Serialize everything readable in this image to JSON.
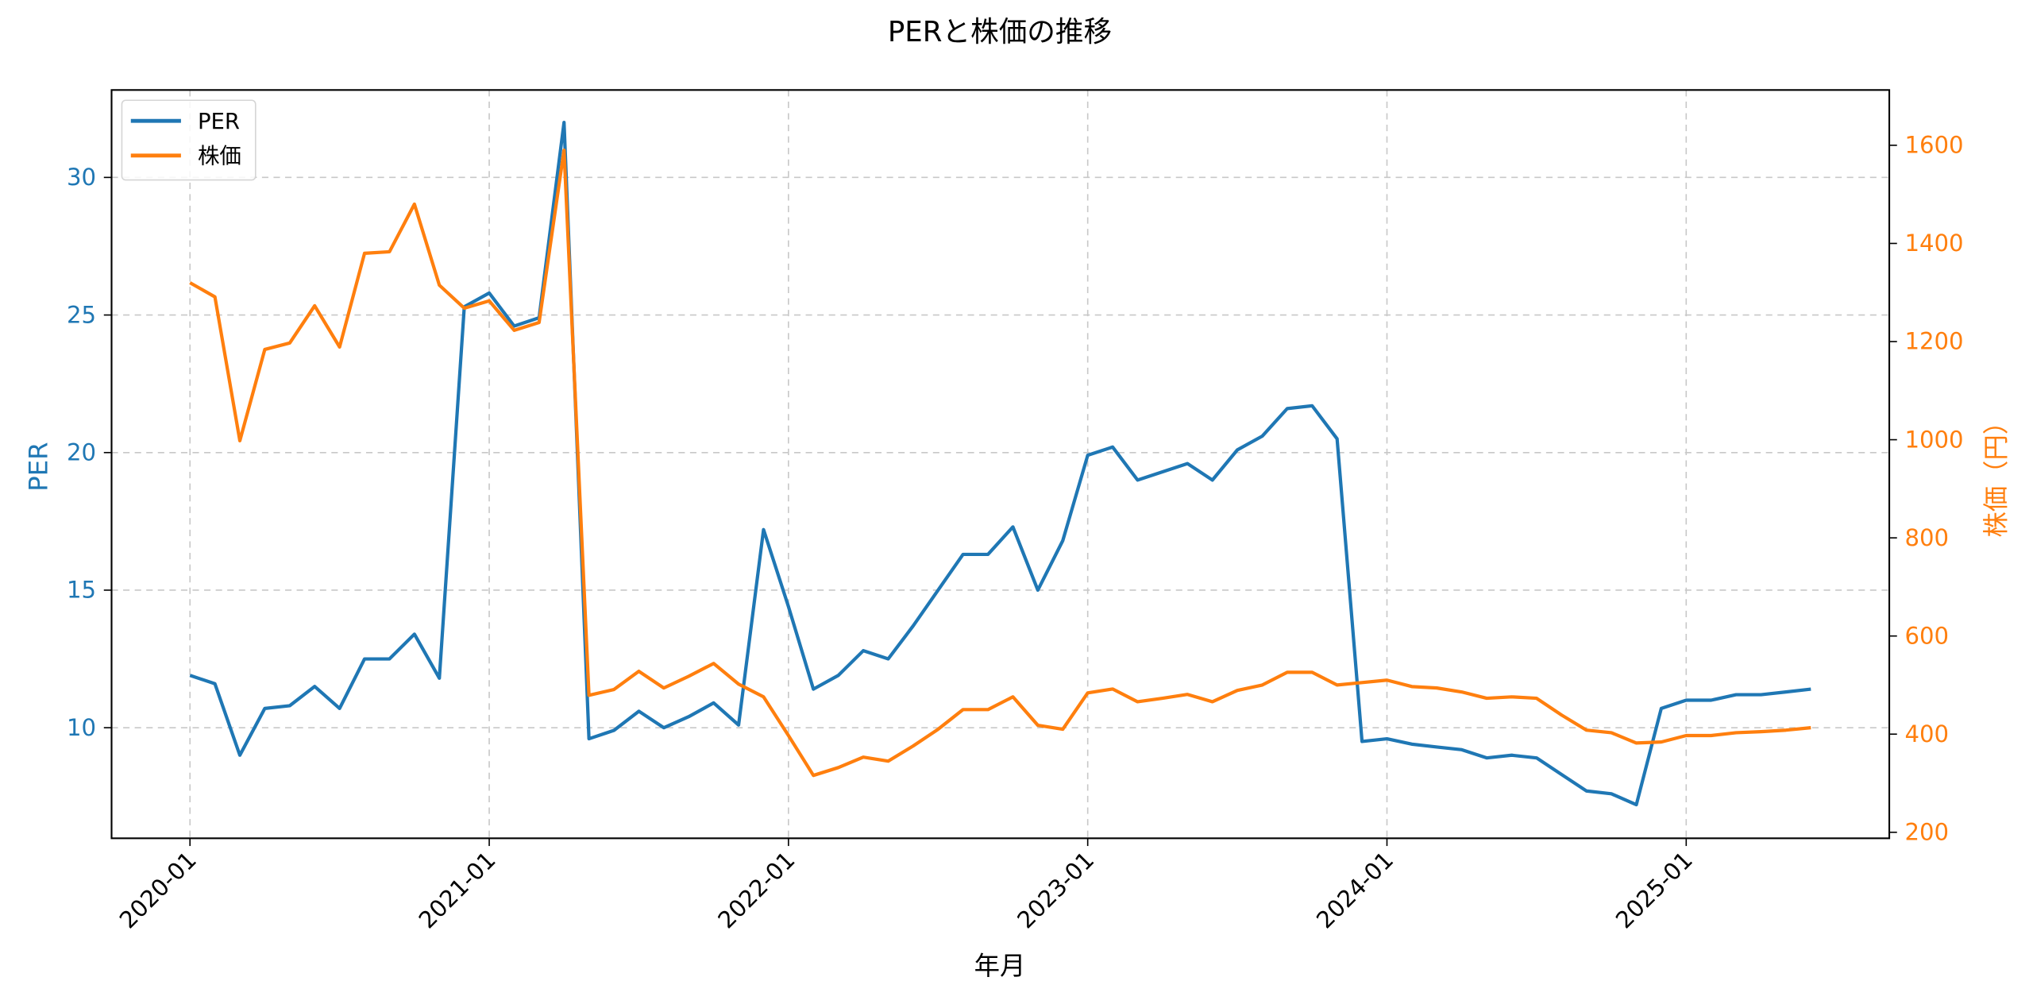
{
  "chart_data": {
    "type": "line",
    "title": "PERと株価の推移",
    "xlabel": "年月",
    "ylabel": "PER",
    "ylabel_right": "株価（円）",
    "x": [
      "2020-01",
      "2020-02",
      "2020-03",
      "2020-04",
      "2020-05",
      "2020-06",
      "2020-07",
      "2020-08",
      "2020-09",
      "2020-10",
      "2020-11",
      "2020-12",
      "2021-01",
      "2021-02",
      "2021-03",
      "2021-04",
      "2021-05",
      "2021-06",
      "2021-07",
      "2021-08",
      "2021-09",
      "2021-10",
      "2021-11",
      "2021-12",
      "2022-01",
      "2022-02",
      "2022-03",
      "2022-04",
      "2022-05",
      "2022-06",
      "2022-07",
      "2022-08",
      "2022-09",
      "2022-10",
      "2022-11",
      "2022-12",
      "2023-01",
      "2023-02",
      "2023-03",
      "2023-04",
      "2023-05",
      "2023-06",
      "2023-07",
      "2023-08",
      "2023-09",
      "2023-10",
      "2023-11",
      "2023-12",
      "2024-01",
      "2024-02",
      "2024-03",
      "2024-04",
      "2024-05",
      "2024-06",
      "2024-07",
      "2024-08",
      "2024-09",
      "2024-10",
      "2024-11",
      "2024-12",
      "2025-01",
      "2025-02",
      "2025-03",
      "2025-04",
      "2025-05",
      "2025-06"
    ],
    "xticks": [
      "2020-01",
      "2021-01",
      "2022-01",
      "2023-01",
      "2024-01",
      "2025-01"
    ],
    "series": [
      {
        "name": "PER",
        "axis": "left",
        "color": "#1f77b4",
        "values": [
          11.9,
          11.6,
          9.0,
          10.7,
          10.8,
          11.5,
          10.7,
          12.5,
          12.5,
          13.4,
          11.8,
          25.3,
          25.8,
          24.6,
          24.9,
          32.0,
          9.6,
          9.9,
          10.6,
          10.0,
          10.4,
          10.9,
          10.1,
          17.2,
          14.4,
          11.4,
          11.9,
          12.8,
          12.5,
          13.7,
          15.0,
          16.3,
          16.3,
          17.3,
          15.0,
          16.8,
          19.9,
          20.2,
          19.0,
          19.3,
          19.6,
          19.0,
          20.1,
          20.6,
          21.6,
          21.7,
          20.5,
          9.5,
          9.6,
          9.4,
          9.3,
          9.2,
          8.9,
          9.0,
          8.9,
          8.3,
          7.7,
          7.6,
          7.2,
          10.7,
          11.0,
          11.0,
          11.2,
          11.2,
          11.3,
          11.4
        ]
      },
      {
        "name": "株価",
        "axis": "right",
        "color": "#ff7f0e",
        "values": [
          1320,
          1291,
          998,
          1184,
          1197,
          1273,
          1189,
          1380,
          1383,
          1480,
          1315,
          1268,
          1283,
          1223,
          1239,
          1590,
          479,
          491,
          528,
          494,
          518,
          544,
          502,
          476,
          397,
          316,
          332,
          353,
          345,
          376,
          410,
          450,
          450,
          476,
          418,
          410,
          484,
          492,
          466,
          473,
          481,
          466,
          489,
          500,
          526,
          526,
          500,
          505,
          510,
          497,
          494,
          486,
          473,
          476,
          473,
          439,
          408,
          403,
          382,
          384,
          397,
          397,
          403,
          405,
          408,
          413
        ]
      }
    ],
    "ylim": [
      6,
      33.4
    ],
    "ylim_right": [
      190,
      1715
    ],
    "yticks_left": [
      10,
      15,
      20,
      25,
      30
    ],
    "yticks_right": [
      200,
      400,
      600,
      800,
      1000,
      1200,
      1400,
      1600
    ],
    "grid": true,
    "legend_position": "upper left"
  },
  "legend": {
    "items": [
      {
        "label": "PER",
        "color": "#1f77b4"
      },
      {
        "label": "株価",
        "color": "#ff7f0e"
      }
    ]
  },
  "colors": {
    "left_axis": "#1f77b4",
    "right_axis": "#ff7f0e",
    "grid": "#c8c8c8"
  }
}
